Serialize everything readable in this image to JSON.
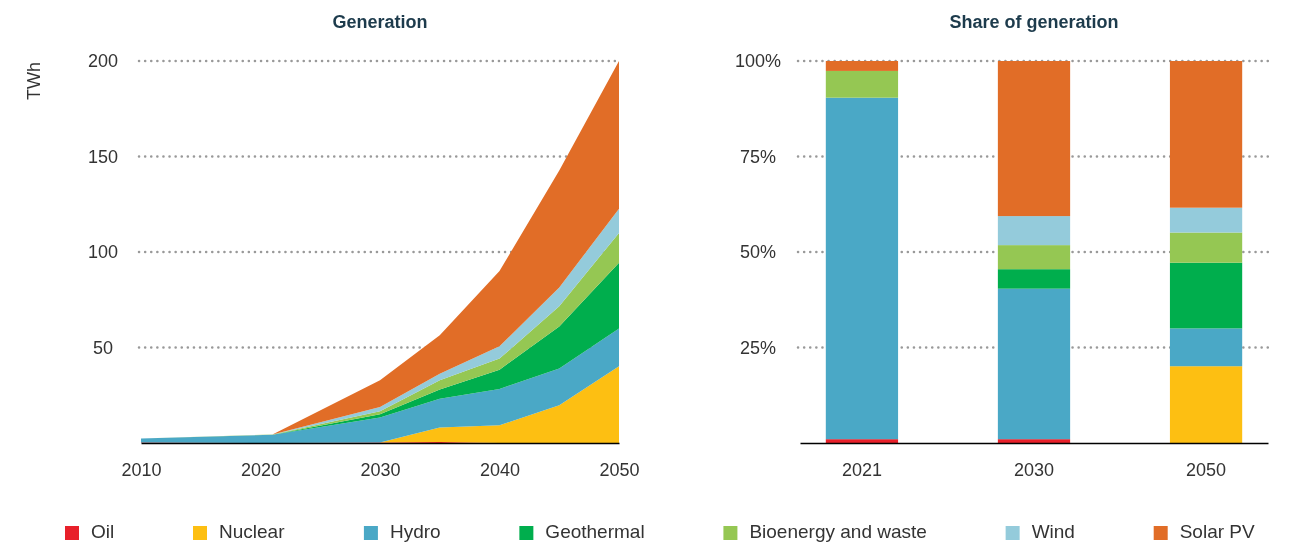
{
  "chart_data": [
    {
      "type": "area",
      "title": "Generation",
      "ylabel": "TWh",
      "stacked": true,
      "grid": "y",
      "legend": "bottom",
      "x": [
        2010,
        2021,
        2030,
        2035,
        2040,
        2045,
        2050
      ],
      "xlim": [
        2010,
        2050
      ],
      "xticks": [
        2010,
        2020,
        2030,
        2040,
        2050
      ],
      "ylim": [
        0,
        200
      ],
      "yticks": [
        50,
        100,
        150,
        200
      ],
      "series": [
        {
          "name": "Oil",
          "color": "#e8202a",
          "values": [
            0.3,
            0,
            0.3,
            0.5,
            0,
            0,
            0
          ]
        },
        {
          "name": "Nuclear",
          "color": "#fdbf12",
          "values": [
            0,
            0,
            0,
            7.6,
            9.3,
            19.7,
            40.2
          ]
        },
        {
          "name": "Hydro",
          "color": "#4aa8c6",
          "values": [
            2,
            4.3,
            13,
            15.1,
            19,
            19.3,
            19.7
          ]
        },
        {
          "name": "Geothermal",
          "color": "#00ae4d",
          "values": [
            0,
            0,
            1.7,
            4.8,
            10.1,
            22,
            34.5
          ]
        },
        {
          "name": "Bioenergy and waste",
          "color": "#95c753",
          "values": [
            0,
            0.2,
            1.6,
            4.8,
            5.8,
            10.6,
            15.6
          ]
        },
        {
          "name": "Wind",
          "color": "#94cbdb",
          "values": [
            0,
            0,
            2.2,
            3.5,
            6.4,
            9.8,
            12.7
          ]
        },
        {
          "name": "Solar PV",
          "color": "#e16d27",
          "values": [
            0,
            0,
            14,
            20.1,
            39.4,
            61.3,
            77.3
          ]
        }
      ]
    },
    {
      "type": "bar",
      "title": "Share of generation",
      "stacked": true,
      "grid": "y",
      "categories": [
        "2021",
        "2030",
        "2050"
      ],
      "ylim": [
        0,
        100
      ],
      "yticks": [
        {
          "value": 25,
          "label": "25%"
        },
        {
          "value": 50,
          "label": "50%"
        },
        {
          "value": 75,
          "label": "75%"
        },
        {
          "value": 100,
          "label": "100%"
        }
      ],
      "series": [
        {
          "color": "#e8202a",
          "values": [
            1,
            1,
            0
          ]
        },
        {
          "color": "#fdbf12",
          "values": [
            0,
            0,
            20.1
          ]
        },
        {
          "color": "#4aa8c6",
          "values": [
            89.4,
            39.4,
            9.9
          ]
        },
        {
          "color": "#00ae4d",
          "values": [
            0,
            5.1,
            17.2
          ]
        },
        {
          "color": "#95c753",
          "values": [
            7,
            6.3,
            7.9
          ]
        },
        {
          "color": "#94cbdb",
          "values": [
            0,
            7.6,
            6.5
          ]
        },
        {
          "color": "#e16d27",
          "values": [
            2.6,
            40.6,
            38.4
          ]
        }
      ]
    }
  ]
}
